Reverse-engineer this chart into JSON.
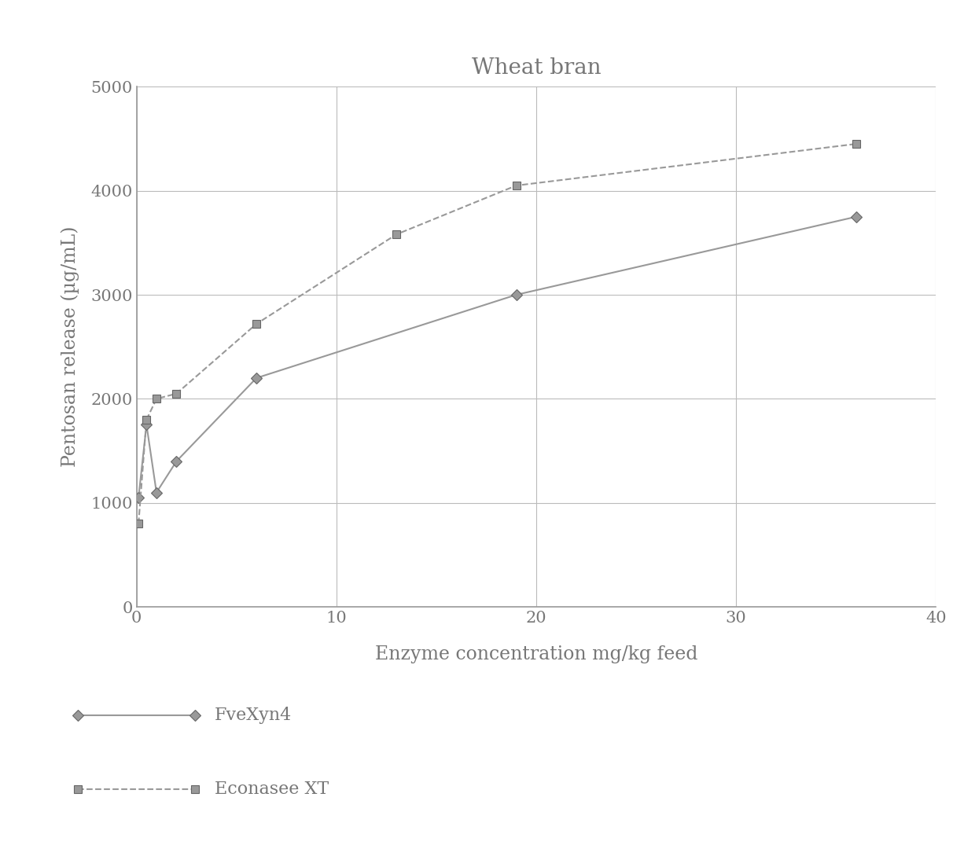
{
  "title": "Wheat bran",
  "xlabel": "Enzyme concentration mg/kg feed",
  "ylabel": "Pentosan release (µg/mL)",
  "xlim": [
    0,
    40
  ],
  "ylim": [
    0,
    5000
  ],
  "xticks": [
    0,
    10,
    20,
    30,
    40
  ],
  "yticks": [
    0,
    1000,
    2000,
    3000,
    4000,
    5000
  ],
  "series": [
    {
      "name": "FveXyn4",
      "x": [
        0.1,
        0.5,
        1.0,
        2.0,
        6.0,
        19.0,
        36.0
      ],
      "y": [
        1050,
        1750,
        1100,
        1400,
        2200,
        3000,
        3750
      ],
      "color": "#999999",
      "linestyle": "-",
      "marker": "D",
      "markersize": 7,
      "linewidth": 1.5
    },
    {
      "name": "Econasee XT",
      "x": [
        0.1,
        0.5,
        1.0,
        2.0,
        6.0,
        13.0,
        19.0,
        36.0
      ],
      "y": [
        800,
        1800,
        2000,
        2050,
        2720,
        3580,
        4050,
        4450
      ],
      "color": "#999999",
      "linestyle": "--",
      "marker": "s",
      "markersize": 7,
      "linewidth": 1.5
    }
  ],
  "title_fontsize": 20,
  "label_fontsize": 17,
  "tick_fontsize": 15,
  "legend_fontsize": 16,
  "background_color": "#ffffff",
  "grid_color": "#bbbbbb"
}
